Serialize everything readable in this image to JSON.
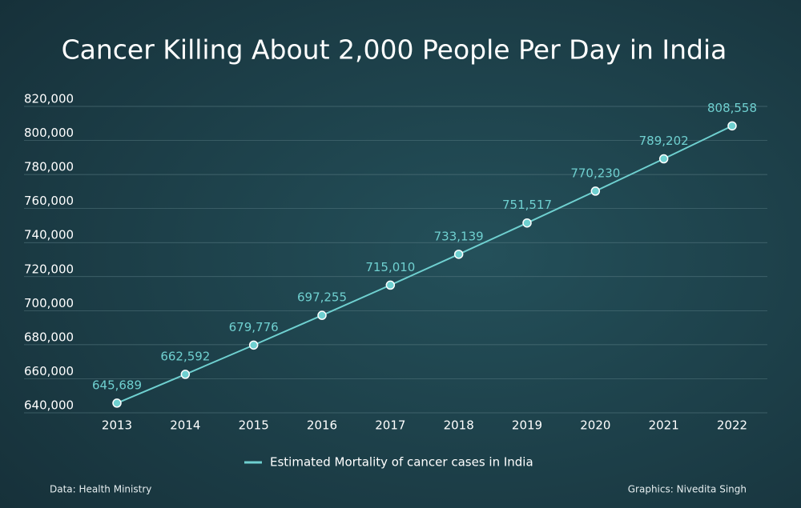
{
  "chart_data": {
    "type": "line",
    "title": "Cancer Killing About 2,000 People Per Day in India",
    "categories": [
      "2013",
      "2014",
      "2015",
      "2016",
      "2017",
      "2018",
      "2019",
      "2020",
      "2021",
      "2022"
    ],
    "series": [
      {
        "name": "Estimated Mortality of cancer cases in India",
        "color": "#6fd0d0",
        "values": [
          645689,
          662592,
          679776,
          697255,
          715010,
          733139,
          751517,
          770230,
          789202,
          808558
        ],
        "value_labels": [
          "645,689",
          "662,592",
          "679,776",
          "697,255",
          "715,010",
          "733,139",
          "751,517",
          "770,230",
          "789,202",
          "808,558"
        ]
      }
    ],
    "ylim": [
      640000,
      820000
    ],
    "yticks": [
      {
        "value": 640000,
        "label": "640,000"
      },
      {
        "value": 660000,
        "label": "660,000"
      },
      {
        "value": 680000,
        "label": "680,000"
      },
      {
        "value": 700000,
        "label": "700,000"
      },
      {
        "value": 720000,
        "label": "720,000"
      },
      {
        "value": 740000,
        "label": "740,000"
      },
      {
        "value": 760000,
        "label": "760,000"
      },
      {
        "value": 780000,
        "label": "780,000"
      },
      {
        "value": 800000,
        "label": "800,000"
      },
      {
        "value": 820000,
        "label": "820,000"
      }
    ],
    "grid": true,
    "legend": "bottom",
    "source": "Data: Health Ministry",
    "credit": "Graphics: Nivedita Singh"
  }
}
